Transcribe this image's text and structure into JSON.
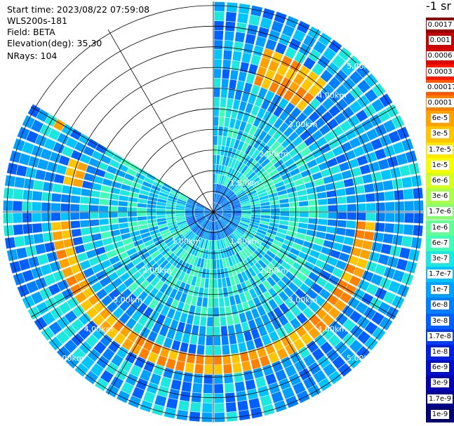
{
  "info": {
    "start_time": "Start time: 2023/08/22 07:59:08",
    "station": "WLS200s-181",
    "field": "Field: BETA",
    "elevation": "Elevation(deg): 35.30",
    "nrays": "NRays: 104"
  },
  "chart_data": {
    "type": "heatmap",
    "projection": "polar-ppi",
    "range_ring_labels_km": [
      "1.00km",
      "2.00km",
      "3.00km",
      "4.00km",
      "5.00km"
    ],
    "range_ring_values_km": [
      1,
      2,
      3,
      4,
      5
    ],
    "max_range_km": 5.1,
    "azimuth_spokes_deg": [
      0,
      30,
      60,
      90,
      120,
      150,
      180,
      210,
      240,
      270,
      300,
      330
    ],
    "missing_sector_deg": [
      300,
      360
    ],
    "n_rays": 104,
    "colorbar": {
      "unit_label": "-1 sr",
      "ticks": [
        "0.0017",
        "0.001",
        "0.0006",
        "0.0003",
        "0.00017",
        "0.0001",
        "6e-5",
        "3e-5",
        "1.7e-5",
        "1e-5",
        "6e-6",
        "3e-6",
        "1.7e-6",
        "1e-6",
        "6e-7",
        "3e-7",
        "1.7e-7",
        "1e-7",
        "6e-8",
        "3e-8",
        "1.7e-8",
        "1e-8",
        "6e-9",
        "3e-9",
        "1.7e-9",
        "1e-9"
      ],
      "colors": [
        "#990000",
        "#cc0000",
        "#e00000",
        "#ff1a00",
        "#ff5a00",
        "#ff7f00",
        "#ffa200",
        "#ffc600",
        "#ffe800",
        "#f4ff00",
        "#d2ff20",
        "#aaff4c",
        "#86ff70",
        "#62ff94",
        "#3fffb8",
        "#1ce8e0",
        "#00c4ff",
        "#00a0ff",
        "#0080ff",
        "#0060ff",
        "#0040f0",
        "#0020e0",
        "#0010c8",
        "#0000b0",
        "#000090",
        "#000070"
      ]
    },
    "features": [
      {
        "name": "aerosol-ring",
        "range_km": [
          3.5,
          3.9
        ],
        "azimuth_deg": [
          95,
          265
        ],
        "level": "3e-5 to 1e-4"
      },
      {
        "name": "northeast-arc",
        "range_km": [
          3.3,
          4.1
        ],
        "azimuth_deg": [
          18,
          40
        ],
        "level": "3e-5 to 1e-4"
      },
      {
        "name": "west-arc",
        "range_km": [
          3.2,
          3.6
        ],
        "azimuth_deg": [
          280,
          290
        ],
        "level": "3e-5 to 1e-4"
      },
      {
        "name": "northwest-patch",
        "range_km": [
          4.2,
          4.4
        ],
        "azimuth_deg": [
          298,
          302
        ],
        "level": "3e-5"
      }
    ]
  }
}
